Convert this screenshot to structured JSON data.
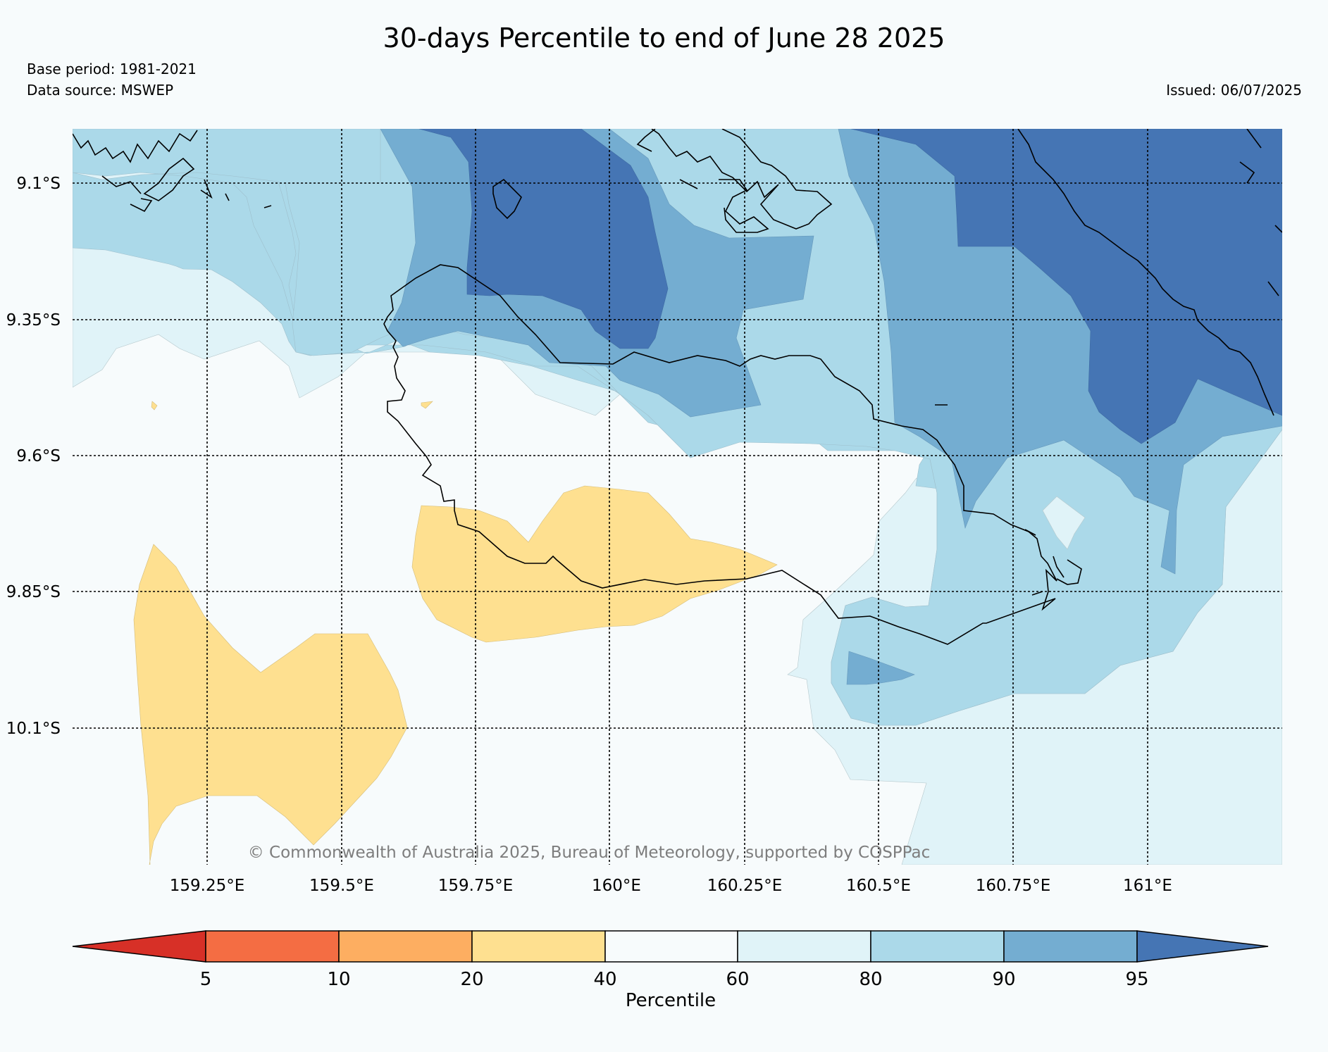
{
  "header": {
    "title": "30-days Percentile to end of June 28 2025",
    "base_period": "Base period: 1981-2021",
    "data_source": "Data source: MSWEP",
    "issued": "Issued: 06/07/2025"
  },
  "map": {
    "lat_labels": [
      "9.1°S",
      "9.35°S",
      "9.6°S",
      "9.85°S",
      "10.1°S"
    ],
    "lon_labels": [
      "159.25°E",
      "159.5°E",
      "159.75°E",
      "160°E",
      "160.25°E",
      "160.5°E",
      "160.75°E",
      "161°E"
    ],
    "copyright": "© Commonwealth of Australia 2025, Bureau of Meteorology, supported by COSPPac"
  },
  "colorbar": {
    "title": "Percentile",
    "tick_labels": [
      "5",
      "10",
      "20",
      "40",
      "60",
      "80",
      "90",
      "95"
    ],
    "colors": {
      "below_5": "#d73027",
      "5_10": "#f46d43",
      "10_20": "#fdae61",
      "20_40": "#fee090",
      "40_60": "#f7fbfc",
      "60_80": "#e0f3f8",
      "80_90": "#abd9e9",
      "90_95": "#74add1",
      "above_95": "#4575b4"
    }
  }
}
